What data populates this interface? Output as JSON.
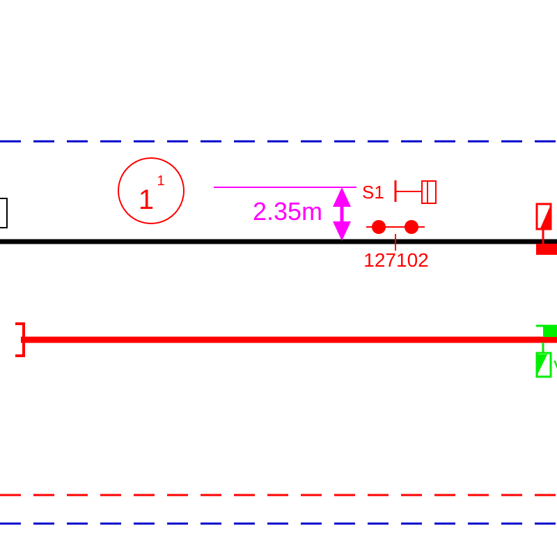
{
  "labels": {
    "ring_main": "1",
    "ring_sup": "1",
    "dimension": "2.35m",
    "signal_name": "S1",
    "axle_counter": "127102",
    "partial_letter": "V"
  },
  "colors": {
    "background": "#ffffff",
    "boundary_blue": "#0000cc",
    "boundary_red": "#ff0000",
    "track": "#000000",
    "signalling_red": "#ff0000",
    "dimension_magenta": "#ff00ff",
    "marker_green": "#00ee00"
  }
}
